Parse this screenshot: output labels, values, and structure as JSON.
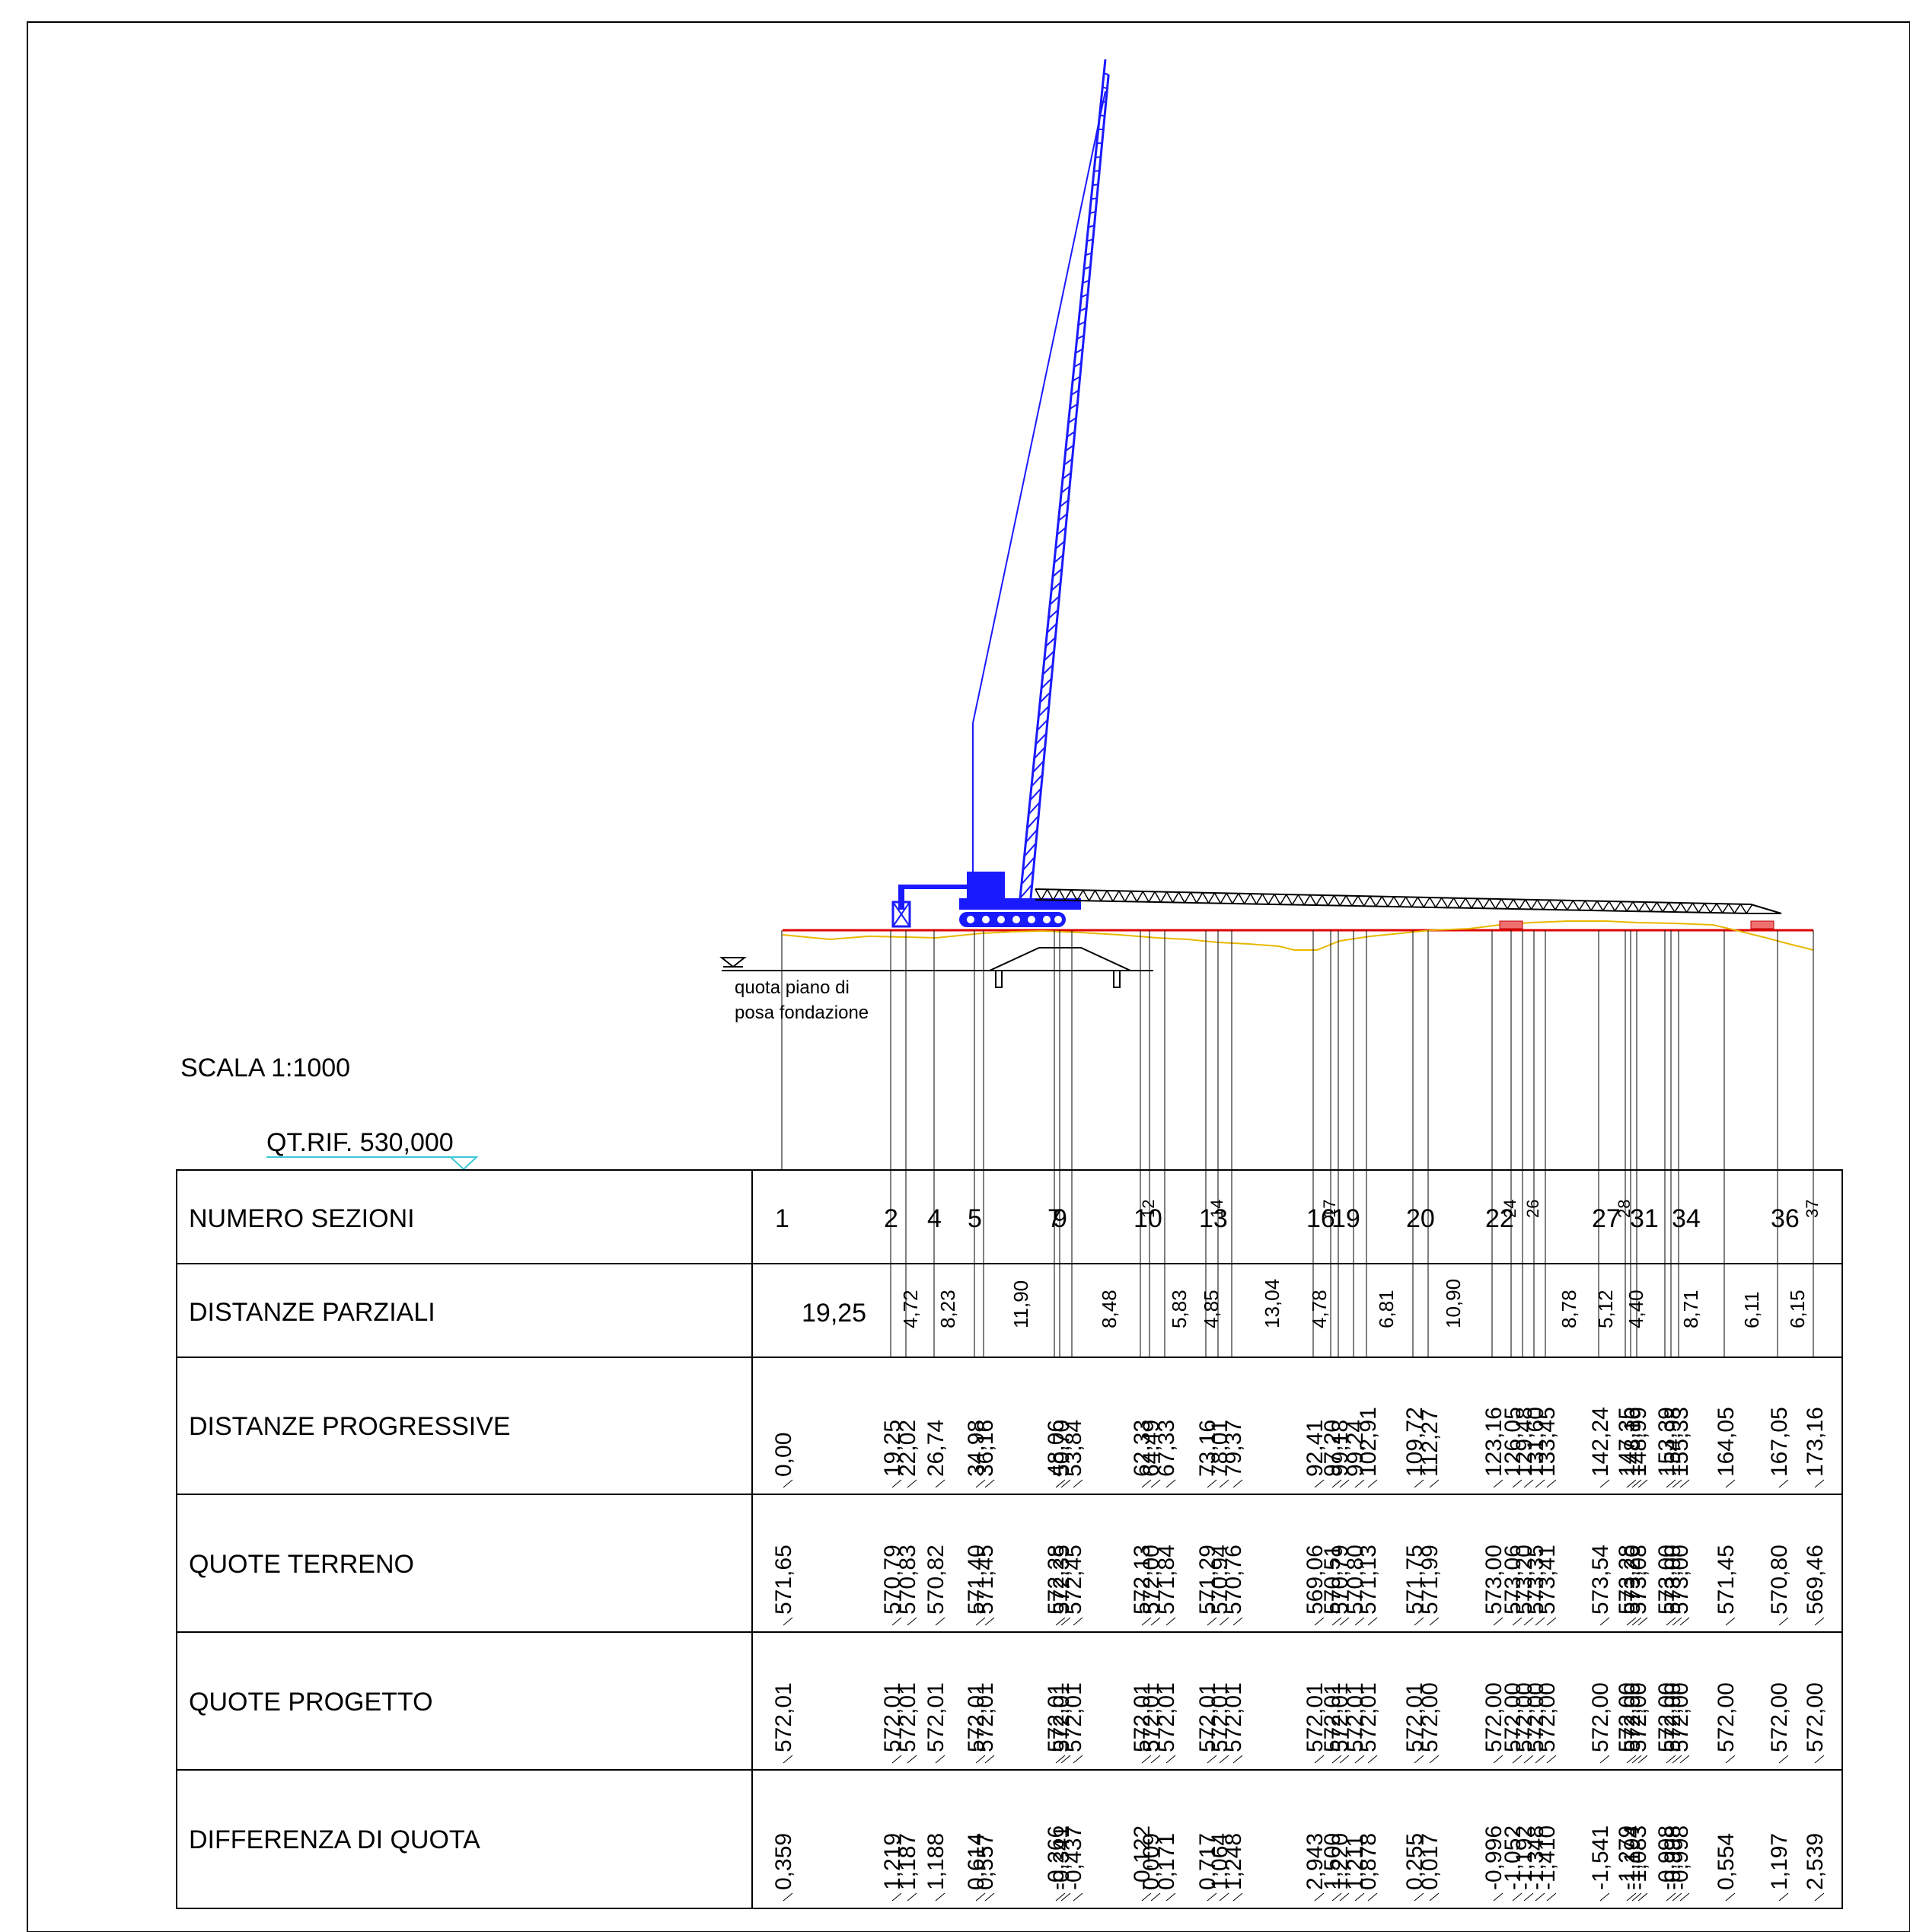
{
  "scale_label": "SCALA 1:1000",
  "ref_label": "QT.RIF. 530,000",
  "water_label_1": "quota piano di",
  "water_label_2": "posa fondazione",
  "row_titles": [
    "NUMERO SEZIONI",
    "DISTANZE PARZIALI",
    "DISTANZE PROGRESSIVE",
    "QUOTE TERRENO",
    "QUOTE PROGETTO",
    "DIFFERENZA DI QUOTA"
  ],
  "colors": {
    "crane": "#1a1aff",
    "table_top": "#5cc8c8",
    "project_line": "#e00000",
    "terrain_line": "#e8b800",
    "ref_line": "#3cc8d8"
  },
  "sections_large": [
    "1",
    "2",
    "4",
    "5",
    "7",
    "9",
    "10",
    "13",
    "16",
    "19",
    "20",
    "22",
    "27",
    "31",
    "34",
    "36"
  ],
  "sections_small": [
    "12",
    "14",
    "17",
    "24",
    "26",
    "28",
    "37"
  ],
  "partial_horizontal": "19,25",
  "partial_vertical": [
    "4,72",
    "8,23",
    "11,90",
    "8,48",
    "5,83",
    "4,85",
    "13,04",
    "4,78",
    "6,81",
    "10,90",
    "8,78",
    "5,12",
    "4,40",
    "8,71",
    "6,11",
    "6,15"
  ],
  "progressive": [
    "0,00",
    "19,25",
    "22,02",
    "26,74",
    "34,98",
    "36,16",
    "48,06",
    "50,70",
    "53,84",
    "62,33",
    "64,49",
    "67,33",
    "73,16",
    "78,01",
    "79,37",
    "92,41",
    "97,20",
    "99,18",
    "99,24",
    "102,91",
    "109,72",
    "112,27",
    "123,16",
    "126,05",
    "129,48",
    "131,60",
    "133,45",
    "142,24",
    "147,35",
    "148,16",
    "148,99",
    "153,39",
    "154,98",
    "155,33",
    "164,05",
    "167,05",
    "173,16"
  ],
  "terrain": [
    "571,65",
    "570,79",
    "570,83",
    "570,82",
    "571,40",
    "571,45",
    "572,28",
    "572,35",
    "572,45",
    "572,13",
    "572,00",
    "571,84",
    "571,29",
    "570,94",
    "570,76",
    "569,06",
    "570,51",
    "570,79",
    "570,80",
    "571,13",
    "571,75",
    "571,99",
    "573,00",
    "573,06",
    "573,20",
    "573,35",
    "573,41",
    "573,54",
    "573,28",
    "573,20",
    "573,08",
    "573,00",
    "573,00",
    "573,00",
    "571,45",
    "570,80",
    "569,46"
  ],
  "project": [
    "572,01",
    "572,01",
    "572,01",
    "572,01",
    "572,01",
    "572,01",
    "572,01",
    "572,01",
    "572,01",
    "572,01",
    "572,01",
    "572,01",
    "572,01",
    "572,01",
    "572,01",
    "572,01",
    "572,01",
    "572,01",
    "572,01",
    "572,01",
    "572,01",
    "572,00",
    "572,00",
    "572,00",
    "572,00",
    "572,00",
    "572,00",
    "572,00",
    "572,00",
    "572,00",
    "572,00",
    "572,00",
    "572,00",
    "572,00",
    "572,00",
    "572,00",
    "572,00"
  ],
  "difference": [
    "0,359",
    "1,219",
    "1,187",
    "1,188",
    "0,614",
    "0,557",
    "-0,266",
    "-0,341",
    "-0,437",
    "-0,122",
    "0,009",
    "0,171",
    "0,717",
    "1,064",
    "1,248",
    "2,943",
    "1,500",
    "1,220",
    "1,211",
    "0,878",
    "0,255",
    "0,017",
    "-0,996",
    "-1,052",
    "-1,192",
    "-1,348",
    "-1,410",
    "-1,541",
    "-1,279",
    "-1,194",
    "-1,083",
    "-0,998",
    "-0,998",
    "-0,998",
    "0,554",
    "1,197",
    "2,539"
  ]
}
